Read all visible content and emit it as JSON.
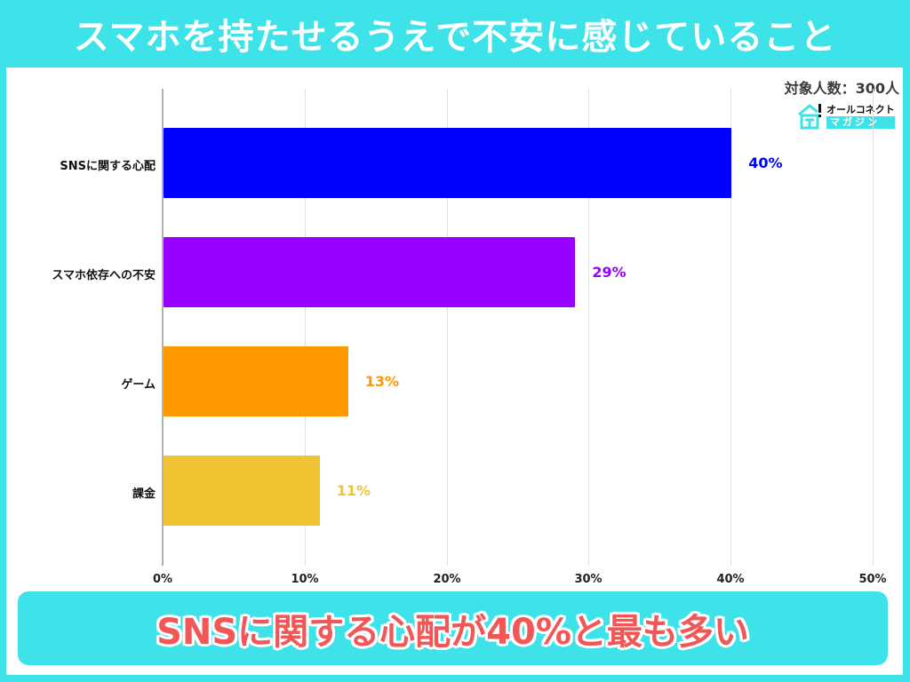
{
  "header": {
    "title": "スマホを持たせるうえで不安に感じていること"
  },
  "meta": {
    "sample_size_label": "対象人数：300人"
  },
  "logo": {
    "top_text": "オールコネクト",
    "bottom_text": "マガジン",
    "icon": "house-with-exclamation-icon"
  },
  "chart_data": {
    "type": "bar",
    "orientation": "horizontal",
    "title": "スマホを持たせるうえで不安に感じていること",
    "subtitle": "対象人数：300人",
    "xlabel": "",
    "ylabel": "",
    "categories": [
      "SNSに関する心配",
      "スマホ依存への不安",
      "ゲーム",
      "課金"
    ],
    "values": [
      40,
      29,
      13,
      11
    ],
    "value_labels": [
      "40%",
      "29%",
      "13%",
      "11%"
    ],
    "colors": [
      "#0000ff",
      "#9900ff",
      "#ff9900",
      "#f1c232"
    ],
    "xlim": [
      0,
      50
    ],
    "xticks": [
      "0%",
      "10%",
      "20%",
      "30%",
      "40%",
      "50%"
    ],
    "grid": true,
    "legend": "none",
    "annotation": "SNSに関する心配が40%と最も多い"
  },
  "callout": {
    "text": "SNSに関する心配が40%と最も多い"
  },
  "colors": {
    "frame": "#3ee3e9",
    "callout_text": "#f25757"
  }
}
